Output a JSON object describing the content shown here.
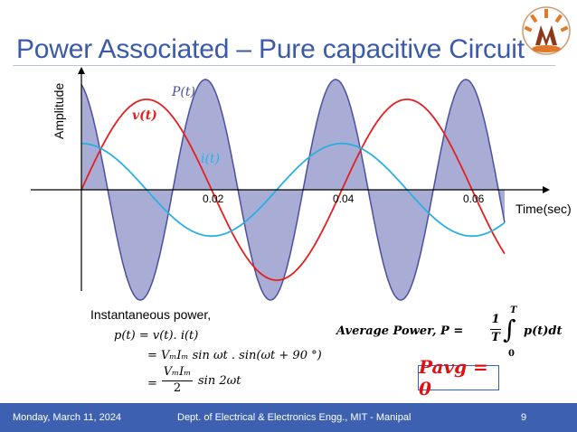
{
  "slide": {
    "title": "Power Associated – Pure capacitive Circuit",
    "footer": {
      "date": "Monday, March 11, 2024",
      "dept": "Dept. of Electrical & Electronics Engg., MIT - Manipal",
      "page": "9"
    }
  },
  "colors": {
    "title": "#3b5aa8",
    "power": "#4a4f9e",
    "power_fill": "#a9add6",
    "voltage": "#e32020",
    "current": "#2ab0e0",
    "footer": "#3d61b0"
  },
  "chart_data": {
    "type": "line",
    "xlabel": "Time(sec)",
    "ylabel": "Amplitude",
    "x_ticks": [
      "0.02",
      "0.04",
      "0.06"
    ],
    "series": [
      {
        "name": "P(t)",
        "label": "P(t)",
        "amplitude": 1.0,
        "frequency_hz": 50,
        "relation": "2x supply frequency, filled under curve"
      },
      {
        "name": "v(t)",
        "label": "v(t)",
        "amplitude": 0.82,
        "frequency_hz": 25
      },
      {
        "name": "i(t)",
        "label": "i(t)",
        "amplitude": 0.42,
        "frequency_hz": 25,
        "phase_deg": 90
      }
    ],
    "xlim": [
      0,
      0.065
    ],
    "ylim": [
      -1,
      1
    ]
  },
  "equations": {
    "instantaneous_label": "Instantaneous power,",
    "line1": "p(t) = v(t). i(t)",
    "line2": "= VₘIₘ sin ωt . sin(ωt + 90 °)",
    "line3_prefix": "=",
    "line3_frac": "VₘIₘ",
    "line3_den": "2",
    "line3_suffix": "sin 2ωt",
    "avg_label": "Average Power, P =",
    "avg_frac_num": "1",
    "avg_frac_den": "T",
    "avg_upper": "T",
    "avg_lower": "0",
    "avg_integrand": "p(t)dt",
    "result": "Pavg = 0"
  }
}
